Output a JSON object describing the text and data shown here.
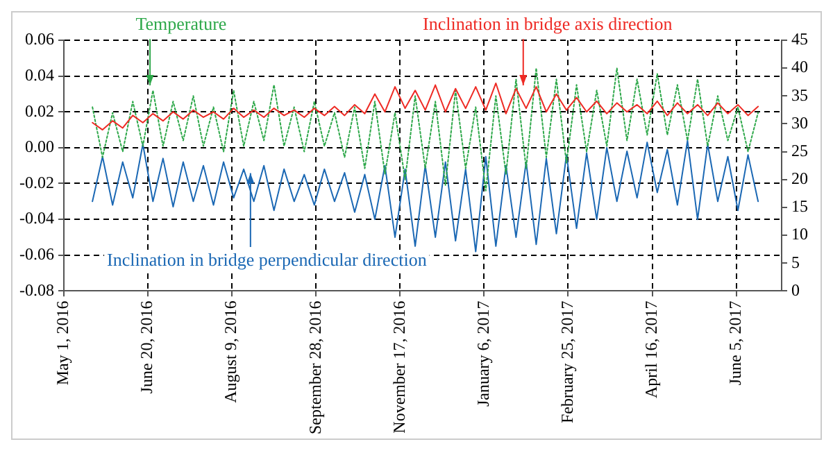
{
  "chart_data": {
    "type": "line",
    "x": [
      "2016-05-18",
      "2016-05-24",
      "2016-05-30",
      "2016-06-05",
      "2016-06-11",
      "2016-06-17",
      "2016-06-23",
      "2016-06-29",
      "2016-07-05",
      "2016-07-11",
      "2016-07-17",
      "2016-07-23",
      "2016-07-29",
      "2016-08-04",
      "2016-08-10",
      "2016-08-16",
      "2016-08-22",
      "2016-08-28",
      "2016-09-03",
      "2016-09-09",
      "2016-09-15",
      "2016-09-21",
      "2016-09-27",
      "2016-10-03",
      "2016-10-09",
      "2016-10-15",
      "2016-10-21",
      "2016-10-27",
      "2016-11-02",
      "2016-11-08",
      "2016-11-14",
      "2016-11-20",
      "2016-11-26",
      "2016-12-02",
      "2016-12-08",
      "2016-12-14",
      "2016-12-20",
      "2016-12-26",
      "2017-01-01",
      "2017-01-07",
      "2017-01-13",
      "2017-01-19",
      "2017-01-25",
      "2017-01-31",
      "2017-02-06",
      "2017-02-12",
      "2017-02-18",
      "2017-02-24",
      "2017-03-02",
      "2017-03-08",
      "2017-03-14",
      "2017-03-20",
      "2017-03-26",
      "2017-04-01",
      "2017-04-07",
      "2017-04-13",
      "2017-04-19",
      "2017-04-25",
      "2017-05-01",
      "2017-05-07",
      "2017-05-13",
      "2017-05-19",
      "2017-05-25",
      "2017-05-31",
      "2017-06-06",
      "2017-06-12",
      "2017-06-18"
    ],
    "series": [
      {
        "name": "Inclination in bridge axis direction",
        "color": "#ee2a24",
        "values": [
          0.014,
          0.01,
          0.015,
          0.011,
          0.018,
          0.014,
          0.019,
          0.015,
          0.02,
          0.016,
          0.021,
          0.017,
          0.02,
          0.016,
          0.022,
          0.017,
          0.021,
          0.017,
          0.022,
          0.018,
          0.021,
          0.017,
          0.022,
          0.018,
          0.023,
          0.018,
          0.024,
          0.019,
          0.03,
          0.02,
          0.034,
          0.022,
          0.032,
          0.021,
          0.035,
          0.02,
          0.033,
          0.022,
          0.034,
          0.021,
          0.036,
          0.019,
          0.033,
          0.022,
          0.034,
          0.02,
          0.03,
          0.021,
          0.028,
          0.02,
          0.026,
          0.019,
          0.025,
          0.02,
          0.024,
          0.019,
          0.026,
          0.018,
          0.025,
          0.019,
          0.024,
          0.018,
          0.025,
          0.019,
          0.024,
          0.018,
          0.023
        ]
      },
      {
        "name": "Temperature",
        "color": "#2ea84a",
        "axis": "y2",
        "line_style": "dotted",
        "values": [
          33,
          24,
          32,
          25,
          34,
          26,
          36,
          26,
          34,
          27,
          35,
          26,
          33,
          25,
          36,
          26,
          34,
          27,
          37,
          26,
          33,
          25,
          34,
          26,
          32,
          24,
          33,
          22,
          34,
          21,
          32,
          20,
          35,
          22,
          34,
          19,
          36,
          22,
          33,
          18,
          35,
          21,
          38,
          22,
          40,
          24,
          38,
          23,
          37,
          25,
          36,
          26,
          40,
          27,
          38,
          28,
          39,
          28,
          37,
          27,
          38,
          26,
          35,
          27,
          33,
          25,
          32
        ]
      },
      {
        "name": "Inclination in bridge perpendicular direction",
        "color": "#1b68b4",
        "values": [
          -0.03,
          -0.005,
          -0.032,
          -0.008,
          -0.028,
          0.002,
          -0.03,
          -0.006,
          -0.033,
          -0.008,
          -0.03,
          -0.01,
          -0.032,
          -0.008,
          -0.028,
          -0.012,
          -0.03,
          -0.01,
          -0.035,
          -0.012,
          -0.03,
          -0.015,
          -0.032,
          -0.012,
          -0.03,
          -0.014,
          -0.036,
          -0.015,
          -0.04,
          -0.01,
          -0.05,
          -0.012,
          -0.055,
          -0.01,
          -0.05,
          -0.008,
          -0.052,
          -0.012,
          -0.058,
          -0.005,
          -0.055,
          -0.01,
          -0.05,
          -0.008,
          -0.054,
          -0.006,
          -0.048,
          -0.004,
          -0.045,
          -0.003,
          -0.04,
          0.0,
          -0.03,
          -0.002,
          -0.028,
          0.003,
          -0.025,
          -0.001,
          -0.032,
          0.004,
          -0.04,
          0.002,
          -0.03,
          -0.005,
          -0.035,
          -0.004,
          -0.03
        ]
      }
    ],
    "xlim": [
      "2016-05-01",
      "2017-07-02"
    ],
    "xticks": [
      {
        "value": "2016-05-01",
        "label": "May 1, 2016"
      },
      {
        "value": "2016-06-20",
        "label": "June 20, 2016"
      },
      {
        "value": "2016-08-09",
        "label": "August 9, 2016"
      },
      {
        "value": "2016-09-28",
        "label": "September 28, 2016"
      },
      {
        "value": "2016-11-17",
        "label": "November 17, 2016"
      },
      {
        "value": "2017-01-06",
        "label": "January 6, 2017"
      },
      {
        "value": "2017-02-25",
        "label": "February 25, 2017"
      },
      {
        "value": "2017-04-16",
        "label": "April 16, 2017"
      },
      {
        "value": "2017-06-05",
        "label": "June 5, 2017"
      }
    ],
    "ylim": [
      -0.08,
      0.06
    ],
    "yticks": [
      -0.08,
      -0.06,
      -0.04,
      -0.02,
      {
        "value": 0,
        "label": "0.00"
      },
      0.02,
      0.04,
      0.06
    ],
    "y2lim": [
      0,
      45
    ],
    "y2ticks": [
      0,
      5,
      10,
      15,
      20,
      25,
      30,
      35,
      40,
      45
    ],
    "grid": true,
    "legend": false,
    "marker": "none"
  }
}
